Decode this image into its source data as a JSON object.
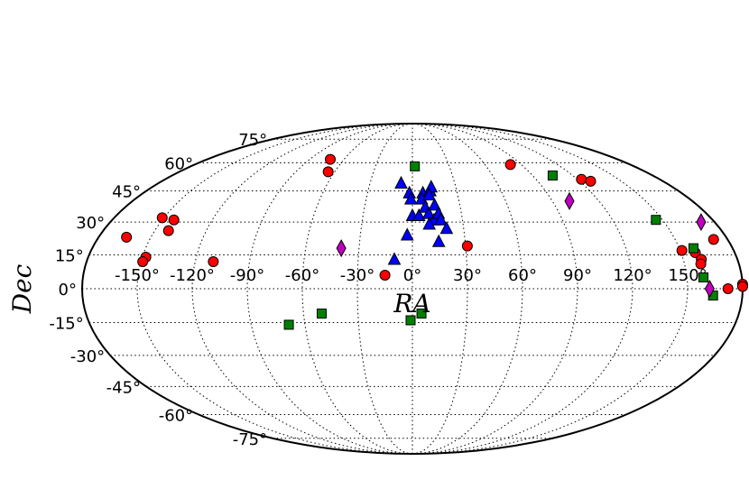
{
  "chart_data": {
    "type": "scatter",
    "projection": "mollweide",
    "xlabel": "RA",
    "ylabel": "Dec",
    "xlim": [
      -180,
      180
    ],
    "ylim": [
      -90,
      90
    ],
    "grid": true,
    "ra_ticks": [
      "-150°",
      "-120°",
      "-90°",
      "-60°",
      "-30°",
      "0°",
      "30°",
      "60°",
      "90°",
      "120°",
      "150°"
    ],
    "dec_ticks": [
      "75°",
      "60°",
      "45°",
      "30°",
      "15°",
      "0°",
      "-15°",
      "-30°",
      "-45°",
      "-60°",
      "-75°"
    ],
    "ra_tick_values": [
      -150,
      -120,
      -90,
      -60,
      -30,
      0,
      30,
      60,
      90,
      120,
      150
    ],
    "dec_tick_values": [
      75,
      60,
      45,
      30,
      15,
      0,
      -15,
      -30,
      -45,
      -60,
      -75
    ],
    "series": [
      {
        "marker": "circle",
        "color": "#ff0000",
        "points": [
          {
            "ra": -72,
            "dec": 62
          },
          {
            "ra": -65,
            "dec": 55
          },
          {
            "ra": -164,
            "dec": 23
          },
          {
            "ra": -151,
            "dec": 32
          },
          {
            "ra": -143,
            "dec": 31
          },
          {
            "ra": -142,
            "dec": 26
          },
          {
            "ra": -148,
            "dec": 14
          },
          {
            "ra": -149,
            "dec": 12
          },
          {
            "ra": -110,
            "dec": 12
          },
          {
            "ra": -15,
            "dec": 6
          },
          {
            "ra": 31,
            "dec": 19
          },
          {
            "ra": 81,
            "dec": 59
          },
          {
            "ra": 123,
            "dec": 51
          },
          {
            "ra": 128,
            "dec": 50
          },
          {
            "ra": 151,
            "dec": 17
          },
          {
            "ra": 158,
            "dec": 16
          },
          {
            "ra": 160,
            "dec": 13
          },
          {
            "ra": 159,
            "dec": 11
          },
          {
            "ra": 172,
            "dec": 22
          },
          {
            "ra": 172,
            "dec": 0
          },
          {
            "ra": 180,
            "dec": 2
          },
          {
            "ra": 180,
            "dec": 1
          }
        ]
      },
      {
        "marker": "triangle",
        "color": "#0000ff",
        "points": [
          {
            "ra": -8,
            "dec": 49
          },
          {
            "ra": -2,
            "dec": 44
          },
          {
            "ra": -1,
            "dec": 41
          },
          {
            "ra": 0,
            "dec": 33
          },
          {
            "ra": 4,
            "dec": 33
          },
          {
            "ra": 7,
            "dec": 44
          },
          {
            "ra": 6,
            "dec": 41
          },
          {
            "ra": 8,
            "dec": 37
          },
          {
            "ra": 10,
            "dec": 34
          },
          {
            "ra": 12,
            "dec": 45
          },
          {
            "ra": 13,
            "dec": 47
          },
          {
            "ra": 11,
            "dec": 43
          },
          {
            "ra": 14,
            "dec": 38
          },
          {
            "ra": 13,
            "dec": 31
          },
          {
            "ra": 10,
            "dec": 29
          },
          {
            "ra": 16,
            "dec": 34
          },
          {
            "ra": 17,
            "dec": 31
          },
          {
            "ra": 20,
            "dec": 27
          },
          {
            "ra": 15,
            "dec": 21
          },
          {
            "ra": -3,
            "dec": 24
          },
          {
            "ra": -10,
            "dec": 13
          }
        ]
      },
      {
        "marker": "square",
        "color": "#008000",
        "points": [
          {
            "ra": 2,
            "dec": 58
          },
          {
            "ra": 105,
            "dec": 53
          },
          {
            "ra": 146,
            "dec": 31
          },
          {
            "ra": 158,
            "dec": 18
          },
          {
            "ra": 159,
            "dec": 5
          },
          {
            "ra": 164,
            "dec": -3
          },
          {
            "ra": -69,
            "dec": -16
          },
          {
            "ra": -50,
            "dec": -11
          },
          {
            "ra": -1,
            "dec": -14
          },
          {
            "ra": 5,
            "dec": -11
          }
        ]
      },
      {
        "marker": "diamond",
        "color": "#bf00bf",
        "points": [
          {
            "ra": -40,
            "dec": 18
          },
          {
            "ra": 101,
            "dec": 40
          },
          {
            "ra": 172,
            "dec": 30
          },
          {
            "ra": 162,
            "dec": 0
          }
        ]
      }
    ]
  }
}
